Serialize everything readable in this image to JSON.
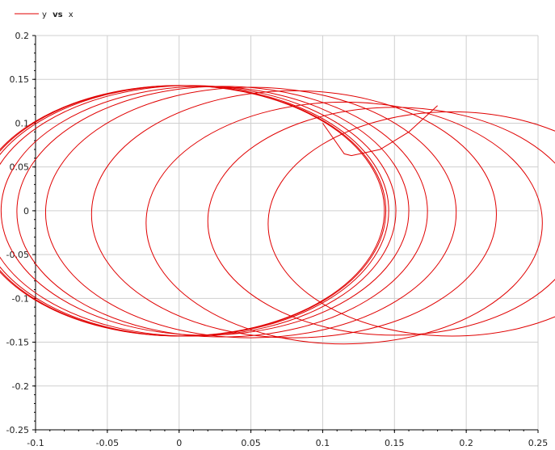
{
  "chart_data": {
    "type": "line",
    "title": "",
    "xlabel": "",
    "ylabel": "",
    "xlim": [
      -0.1,
      0.25
    ],
    "ylim": [
      -0.25,
      0.2
    ],
    "grid": true,
    "legend_placement": "top-left",
    "legend": {
      "y_label": "y",
      "vs_label": "vs",
      "x_label": "x"
    },
    "x_ticks": [
      "-0.1",
      "-0.05",
      "0",
      "0.05",
      "0.1",
      "0.15",
      "0.2",
      "0.25"
    ],
    "y_ticks": [
      "0.2",
      "0.15",
      "0.1",
      "0.05",
      "0",
      "-0.05",
      "-0.1",
      "-0.15",
      "-0.2",
      "-0.25"
    ],
    "series": [
      {
        "name": "y vs x",
        "color": "#e00000",
        "loops": [
          {
            "cx": 0.19,
            "cy": -0.015,
            "r": 0.128
          },
          {
            "cx": 0.15,
            "cy": -0.012,
            "r": 0.13
          },
          {
            "cx": 0.115,
            "cy": -0.014,
            "r": 0.138
          },
          {
            "cx": 0.08,
            "cy": -0.004,
            "r": 0.141
          },
          {
            "cx": 0.05,
            "cy": -0.002,
            "r": 0.143
          },
          {
            "cx": 0.03,
            "cy": -0.001,
            "r": 0.143
          },
          {
            "cx": 0.018,
            "cy": 0.0,
            "r": 0.142
          },
          {
            "cx": 0.008,
            "cy": 0.0,
            "r": 0.143
          },
          {
            "cx": 0.003,
            "cy": 0.0,
            "r": 0.143
          },
          {
            "cx": 0.001,
            "cy": 0.0,
            "r": 0.143
          },
          {
            "cx": 0.0,
            "cy": 0.0,
            "r": 0.143
          }
        ],
        "start_points": [
          {
            "x": 0.1,
            "y": 0.1
          },
          {
            "x": 0.115,
            "y": 0.065
          },
          {
            "x": 0.12,
            "y": 0.063
          },
          {
            "x": 0.14,
            "y": 0.07
          },
          {
            "x": 0.16,
            "y": 0.09
          },
          {
            "x": 0.18,
            "y": 0.12
          }
        ]
      }
    ]
  }
}
